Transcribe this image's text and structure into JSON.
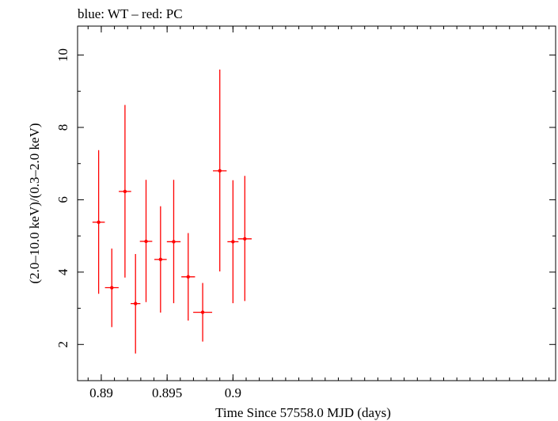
{
  "chart_data": {
    "type": "scatter",
    "title": "blue: WT – red: PC",
    "xlabel": "Time Since 57558.0 MJD (days)",
    "ylabel": "(2.0–10.0 keV)/(0.3–2.0 keV)",
    "xlim": [
      0.8882,
      0.9245
    ],
    "ylim": [
      1.0,
      10.8
    ],
    "x_ticks": [
      0.89,
      0.895,
      0.9
    ],
    "x_tick_labels": [
      "0.89",
      "0.895",
      "0.9"
    ],
    "y_ticks": [
      2,
      4,
      6,
      8,
      10
    ],
    "y_tick_labels": [
      "2",
      "4",
      "6",
      "8",
      "10"
    ],
    "series": [
      {
        "name": "PC",
        "color": "#ff0000",
        "points": [
          {
            "x": 0.8898,
            "xerr": 0.00047,
            "y": 5.38,
            "ylo": 3.4,
            "yhi": 7.37
          },
          {
            "x": 0.8908,
            "xerr": 0.00052,
            "y": 3.57,
            "ylo": 2.48,
            "yhi": 4.65
          },
          {
            "x": 0.8918,
            "xerr": 0.00047,
            "y": 6.23,
            "ylo": 3.85,
            "yhi": 8.62
          },
          {
            "x": 0.8926,
            "xerr": 0.00037,
            "y": 3.13,
            "ylo": 1.75,
            "yhi": 4.5
          },
          {
            "x": 0.8934,
            "xerr": 0.00047,
            "y": 4.85,
            "ylo": 3.17,
            "yhi": 6.55
          },
          {
            "x": 0.8945,
            "xerr": 0.00047,
            "y": 4.35,
            "ylo": 2.88,
            "yhi": 5.82
          },
          {
            "x": 0.8955,
            "xerr": 0.00052,
            "y": 4.84,
            "ylo": 3.14,
            "yhi": 6.55
          },
          {
            "x": 0.8966,
            "xerr": 0.00052,
            "y": 3.87,
            "ylo": 2.66,
            "yhi": 5.08
          },
          {
            "x": 0.8977,
            "xerr": 0.00072,
            "y": 2.89,
            "ylo": 2.08,
            "yhi": 3.7
          },
          {
            "x": 0.899,
            "xerr": 0.00052,
            "y": 6.8,
            "ylo": 4.02,
            "yhi": 9.6
          },
          {
            "x": 0.9,
            "xerr": 0.00042,
            "y": 4.84,
            "ylo": 3.14,
            "yhi": 6.54
          },
          {
            "x": 0.9009,
            "xerr": 0.00052,
            "y": 4.92,
            "ylo": 3.2,
            "yhi": 6.66
          }
        ]
      }
    ]
  }
}
